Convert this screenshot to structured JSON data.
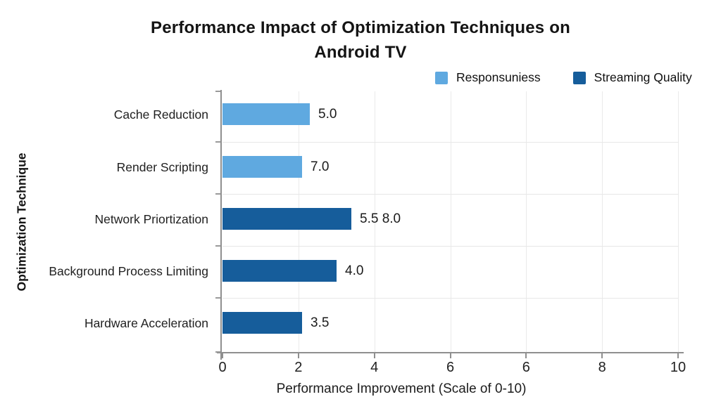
{
  "title": {
    "line1": "Performance Impact of Optimization Techniques on",
    "line2": "Android TV"
  },
  "legend": {
    "items": [
      {
        "label": "Responsuniess",
        "color": "#5FA9E0"
      },
      {
        "label": "Streaming Quality",
        "color": "#165D9B"
      }
    ]
  },
  "chart_data": {
    "type": "bar",
    "orientation": "horizontal",
    "title": "Performance Impact of Optimization Techniques on Android TV",
    "xlabel": "Performance Improvement (Scale of 0-10)",
    "ylabel": "Optimization Technique",
    "x_tick_labels": [
      "0",
      "2",
      "4",
      "6",
      "6",
      "8",
      "10"
    ],
    "x_axis_units_total": 12,
    "xlim_label_range": [
      0,
      10
    ],
    "grid": true,
    "legend_position": "top-right",
    "categories": [
      "Cache Reduction",
      "Render Scripting",
      "Network Priortization",
      "Background Process Limiting",
      "Hardware Acceleration"
    ],
    "series": [
      {
        "name": "Responsuniess",
        "color": "#5FA9E0"
      },
      {
        "name": "Streaming Quality",
        "color": "#165D9B"
      }
    ],
    "bars": [
      {
        "category": "Cache Reduction",
        "series": "Responsuniess",
        "value_label": "5.0",
        "visual_length_units": 2.3
      },
      {
        "category": "Render Scripting",
        "series": "Responsuniess",
        "value_label": "7.0",
        "visual_length_units": 2.1
      },
      {
        "category": "Network Priortization",
        "series": "Streaming Quality",
        "value_label": "5.5 8.0",
        "visual_length_units": 3.4
      },
      {
        "category": "Background Process Limiting",
        "series": "Streaming Quality",
        "value_label": "4.0",
        "visual_length_units": 3.0
      },
      {
        "category": "Hardware Acceleration",
        "series": "Streaming Quality",
        "value_label": "3.5",
        "visual_length_units": 2.1
      }
    ]
  },
  "colors": {
    "background": "#FFFFFF",
    "grid": "#EAEAEA",
    "axis": "#8F8F8F",
    "text": "#1B1B1B",
    "light_blue": "#5FA9E0",
    "dark_blue": "#165D9B"
  }
}
